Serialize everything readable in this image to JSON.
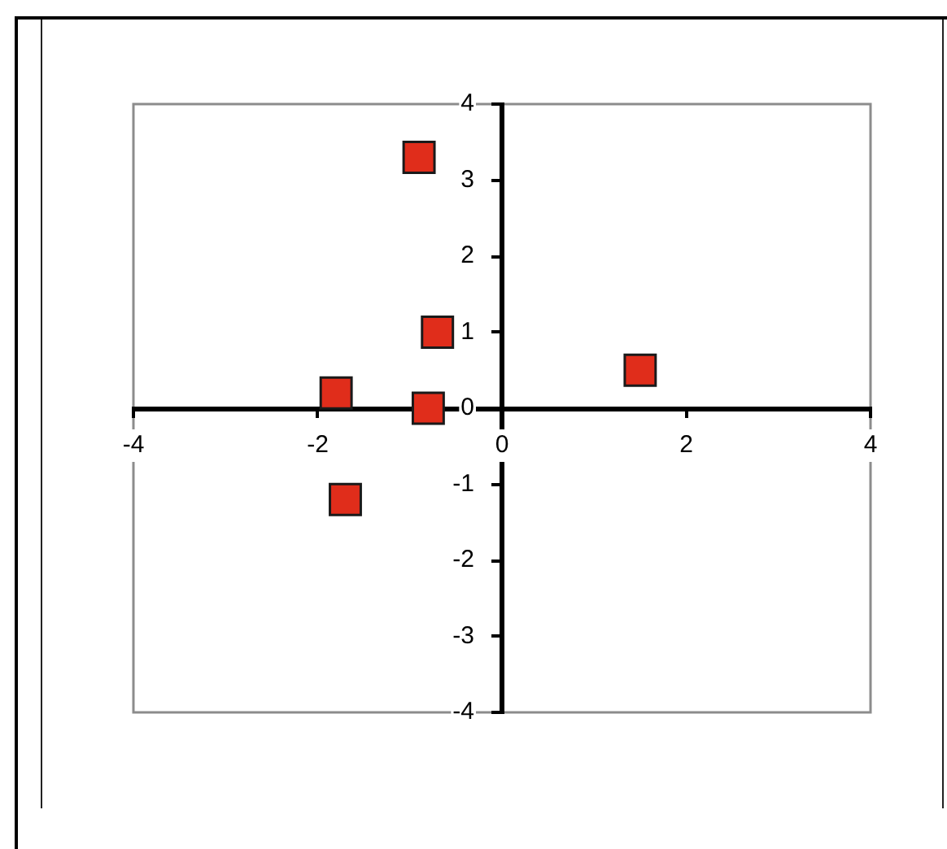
{
  "chart_data": {
    "type": "scatter",
    "x": [
      -0.9,
      -0.7,
      -1.8,
      -0.8,
      1.5,
      -1.7
    ],
    "values": [
      3.3,
      1.0,
      0.2,
      0.0,
      0.5,
      -1.2
    ],
    "color": "#e02d1b",
    "marker": "square",
    "xlim": [
      -4,
      4
    ],
    "ylim": [
      -4,
      4
    ],
    "xticks": [
      -4,
      -2,
      0,
      2,
      4
    ],
    "yticks": [
      -4,
      -3,
      -2,
      -1,
      0,
      1,
      2,
      3,
      4
    ]
  }
}
